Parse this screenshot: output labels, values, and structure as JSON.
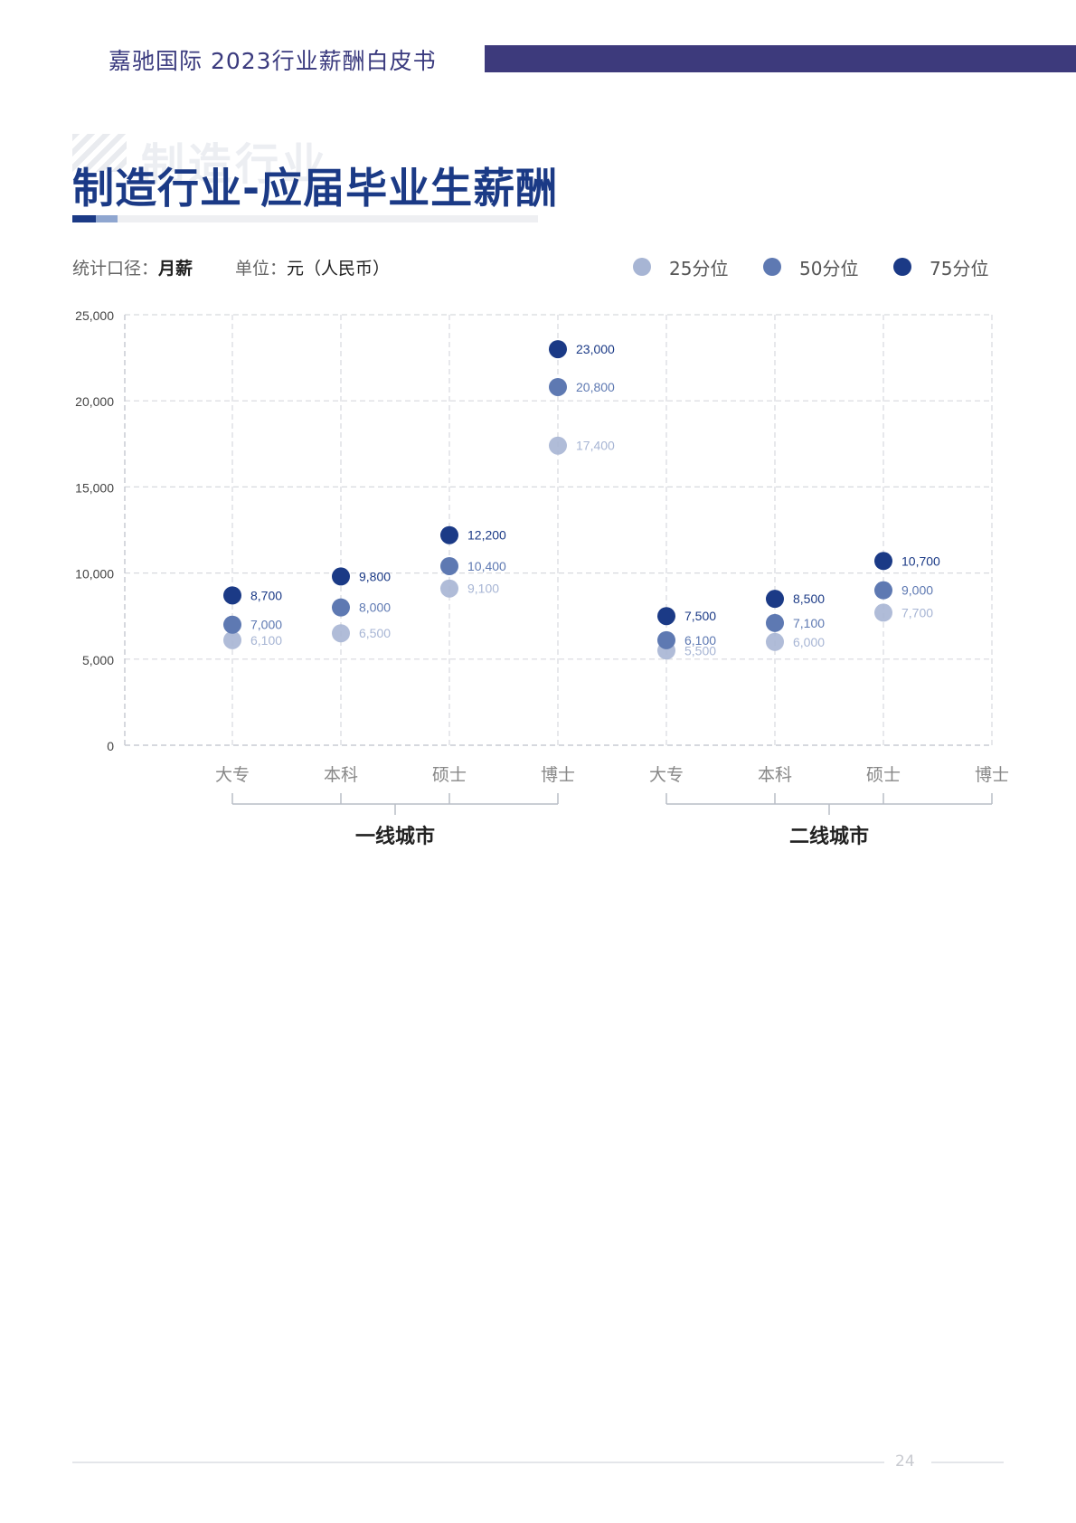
{
  "header": {
    "title": "嘉驰国际  2023行业薪酬白皮书"
  },
  "section": {
    "watermark": "制造行业",
    "title": "制造行业-应届毕业生薪酬"
  },
  "meta": {
    "stat_label": "统计口径：",
    "stat_value": "月薪",
    "unit_label": "单位：",
    "unit_value": "元（人民币）"
  },
  "colors": {
    "p25": "#a7b5d4",
    "p50": "#5e79b2",
    "p75": "#1b3a86",
    "header_bar": "#3d3a7c"
  },
  "chart_data": {
    "type": "scatter",
    "categories": [
      "大专",
      "本科",
      "硕士",
      "博士",
      "大专",
      "本科",
      "硕士",
      "博士"
    ],
    "groups": [
      {
        "label": "一线城市",
        "categories": [
          "大专",
          "本科",
          "硕士",
          "博士"
        ]
      },
      {
        "label": "二线城市",
        "categories": [
          "大专",
          "本科",
          "硕士",
          "博士"
        ]
      }
    ],
    "series": [
      {
        "name": "25分位",
        "values": [
          6100,
          6500,
          9100,
          17400,
          5500,
          6000,
          7700,
          null
        ],
        "labels": [
          "6,100",
          "6,500",
          "9,100",
          "17,400",
          "5,500",
          "6,000",
          "7,700",
          null
        ]
      },
      {
        "name": "50分位",
        "values": [
          7000,
          8000,
          10400,
          20800,
          6100,
          7100,
          9000,
          null
        ],
        "labels": [
          "7,000",
          "8,000",
          "10,400",
          "20,800",
          "6,100",
          "7,100",
          "9,000",
          null
        ]
      },
      {
        "name": "75分位",
        "values": [
          8700,
          9800,
          12200,
          23000,
          7500,
          8500,
          10700,
          null
        ],
        "labels": [
          "8,700",
          "9,800",
          "12,200",
          "23,000",
          "7,500",
          "8,500",
          "10,700",
          null
        ]
      }
    ],
    "yticks": [
      0,
      5000,
      10000,
      15000,
      20000,
      25000
    ],
    "ytick_labels": [
      "0",
      "5,000",
      "10,000",
      "15,000",
      "20,000",
      "25,000"
    ],
    "ylim": [
      0,
      25000
    ],
    "grid": true,
    "legend_position": "top-right"
  },
  "footer": {
    "page_number": "24"
  }
}
